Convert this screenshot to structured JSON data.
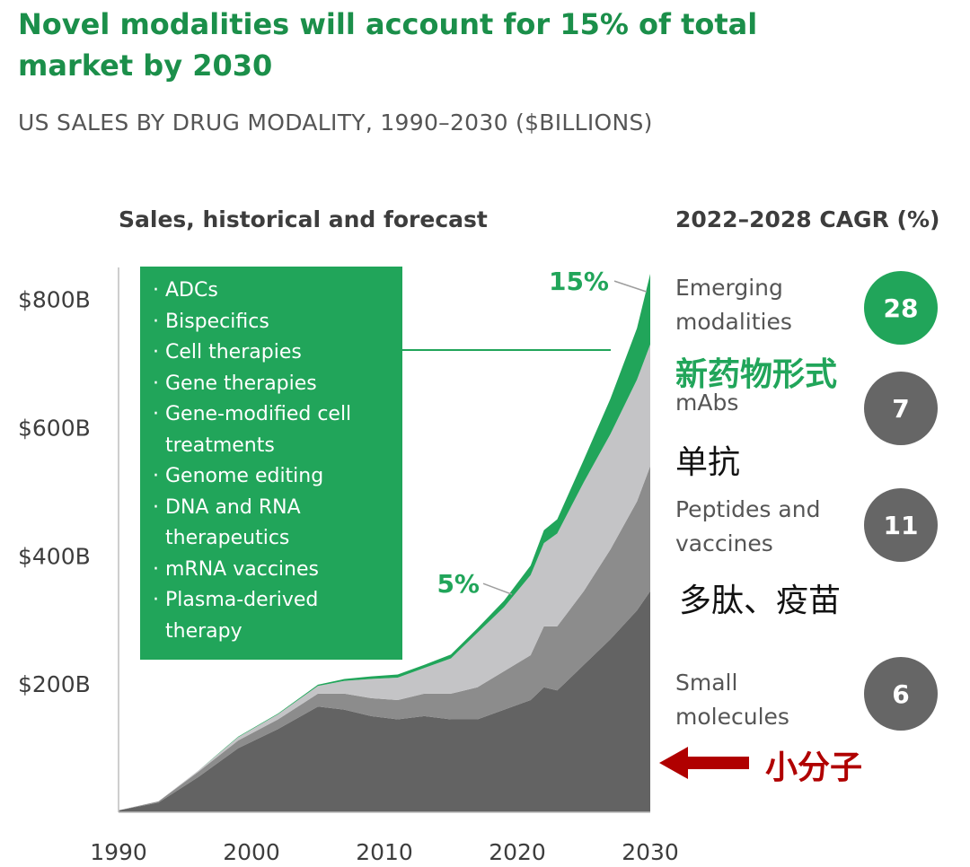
{
  "title": "Novel modalities will account for 15% of total market by 2030",
  "subtitle": "US SALES BY DRUG MODALITY, 1990–2030 ($BILLIONS)",
  "chart_heading": "Sales, historical and forecast",
  "cagr_heading": "2022–2028 CAGR (%)",
  "legend_items": [
    "ADCs",
    "Bispecifics",
    "Cell therapies",
    "Gene therapies",
    "Gene-modified cell treatments",
    "Genome editing",
    "DNA and RNA therapeutics",
    "mRNA vaccines",
    "Plasma-derived therapy"
  ],
  "cagr": [
    {
      "label": "Emerging modalities",
      "value": "28",
      "annotation_cn": "新药物形式",
      "color": "#21a55a"
    },
    {
      "label": "mAbs",
      "value": "7",
      "annotation_cn": "单抗",
      "color": "#666666"
    },
    {
      "label": "Peptides and vaccines",
      "value": "11",
      "annotation_cn": "多肽、疫苗",
      "color": "#666666"
    },
    {
      "label": "Small molecules",
      "value": "6",
      "annotation_cn": "小分子",
      "color": "#666666"
    }
  ],
  "colors": {
    "green": "#21a55a",
    "title_green": "#1b8f4a",
    "small_molecules": "#636363",
    "peptides_vaccines": "#8c8c8c",
    "mabs": "#c4c4c6",
    "annotation_red": "#b00000"
  },
  "chart_data": {
    "type": "area",
    "stacked": true,
    "title": "Sales, historical and forecast",
    "xlabel": "",
    "ylabel": "",
    "xlim": [
      1990,
      2030
    ],
    "ylim": [
      0,
      850
    ],
    "x_ticks": [
      1990,
      2000,
      2010,
      2020,
      2030
    ],
    "x_tick_labels": [
      "1990",
      "2000",
      "2010",
      "2020",
      "2030"
    ],
    "y_ticks": [
      200,
      400,
      600,
      800
    ],
    "y_tick_labels": [
      "$200B",
      "$400B",
      "$600B",
      "$800B"
    ],
    "x": [
      1990,
      1993,
      1996,
      1999,
      2002,
      2005,
      2007,
      2009,
      2011,
      2013,
      2015,
      2017,
      2019,
      2021,
      2022,
      2023,
      2025,
      2027,
      2029,
      2030
    ],
    "series": [
      {
        "name": "Small molecules",
        "values": [
          3,
          15,
          55,
          100,
          130,
          165,
          160,
          150,
          145,
          150,
          145,
          145,
          160,
          175,
          195,
          190,
          230,
          270,
          315,
          345
        ]
      },
      {
        "name": "Peptides and vaccines",
        "values": [
          0,
          2,
          8,
          12,
          15,
          20,
          25,
          28,
          30,
          35,
          40,
          50,
          60,
          70,
          95,
          100,
          115,
          140,
          170,
          195
        ]
      },
      {
        "name": "mAbs",
        "values": [
          0,
          0,
          2,
          5,
          8,
          12,
          20,
          30,
          35,
          40,
          55,
          85,
          100,
          125,
          130,
          145,
          170,
          180,
          190,
          190
        ]
      },
      {
        "name": "Emerging modalities",
        "values": [
          0,
          0,
          0,
          1,
          1,
          2,
          3,
          4,
          5,
          5,
          6,
          7,
          10,
          15,
          20,
          22,
          35,
          55,
          80,
          110
        ]
      }
    ],
    "annotations": [
      {
        "text": "5%",
        "x": 2020,
        "y": 340
      },
      {
        "text": "15%",
        "x": 2030,
        "y": 840
      }
    ]
  }
}
